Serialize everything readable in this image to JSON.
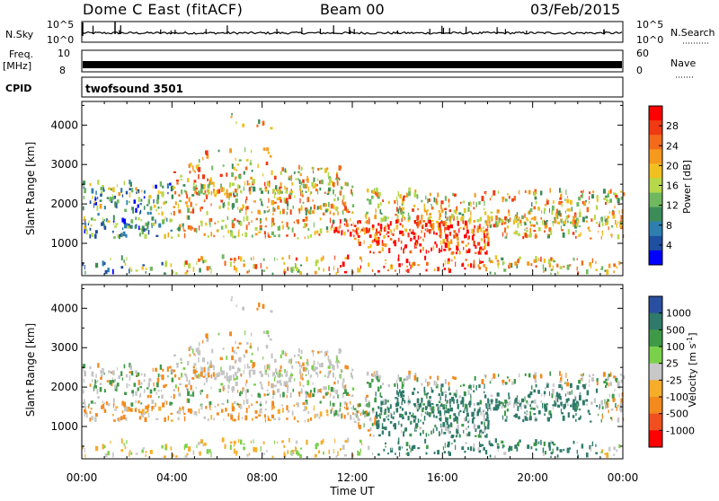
{
  "header": {
    "station": "Dome C East (fitACF)",
    "beam": "Beam 00",
    "date": "03/Feb/2015"
  },
  "rows": {
    "nsky": {
      "label": "N.Sky",
      "ticks": [
        "10^5",
        "10^0"
      ]
    },
    "nsearch": {
      "label": "N.Search",
      "ticks": [
        "10^5",
        "10^0"
      ]
    },
    "freq": {
      "label": "Freq.",
      "unit": "[MHz]",
      "ticks": [
        "10",
        "8"
      ]
    },
    "nave": {
      "label": "Nave",
      "ticks": [
        "60",
        "0"
      ]
    },
    "cpid": {
      "label": "CPID",
      "value": "twofsound 3501"
    }
  },
  "colors": {
    "power_scale": [
      "#0000ff",
      "#1f4fa0",
      "#2e7fb0",
      "#3c8c5a",
      "#6fb860",
      "#b6d84a",
      "#f0c020",
      "#f59a1e",
      "#f26a1a",
      "#ef3a14",
      "#ff0000"
    ],
    "velocity_scale": [
      "#ff0000",
      "#f05020",
      "#f28a1e",
      "#f5ad2a",
      "#c8c8c8",
      "#c8c8c8",
      "#7ad04a",
      "#3f9a48",
      "#2f7a6a",
      "#2a4fa0",
      "#1f3fa8"
    ],
    "gray_scatter": "#c4c4c4"
  },
  "chart_data": [
    {
      "type": "heatmap",
      "title": "Power",
      "ylabel": "Slant Range [km]",
      "xlabel": "Time UT",
      "xlim": [
        "00:00",
        "24:00"
      ],
      "ylim": [
        180,
        4600
      ],
      "x_ticks": [
        "00:00",
        "04:00",
        "08:00",
        "12:00",
        "16:00",
        "20:00",
        "00:00"
      ],
      "y_ticks": [
        1000,
        2000,
        3000,
        4000
      ],
      "colorbar": {
        "label": "Power [dB]",
        "min": 0,
        "max": 32,
        "ticks": [
          "28",
          "24",
          "20",
          "16",
          "12",
          "8",
          "4"
        ]
      }
    },
    {
      "type": "heatmap",
      "title": "Velocity",
      "ylabel": "Slant Range [km]",
      "xlabel": "Time UT",
      "xlim": [
        "00:00",
        "24:00"
      ],
      "ylim": [
        180,
        4600
      ],
      "x_ticks": [
        "00:00",
        "04:00",
        "08:00",
        "12:00",
        "16:00",
        "20:00",
        "00:00"
      ],
      "y_ticks": [
        1000,
        2000,
        3000,
        4000
      ],
      "colorbar": {
        "label": "Velocity [m s^-1]",
        "ticks": [
          "1000",
          "500",
          "100",
          "25",
          "-25",
          "-100",
          "-500",
          "-1000"
        ]
      }
    }
  ]
}
